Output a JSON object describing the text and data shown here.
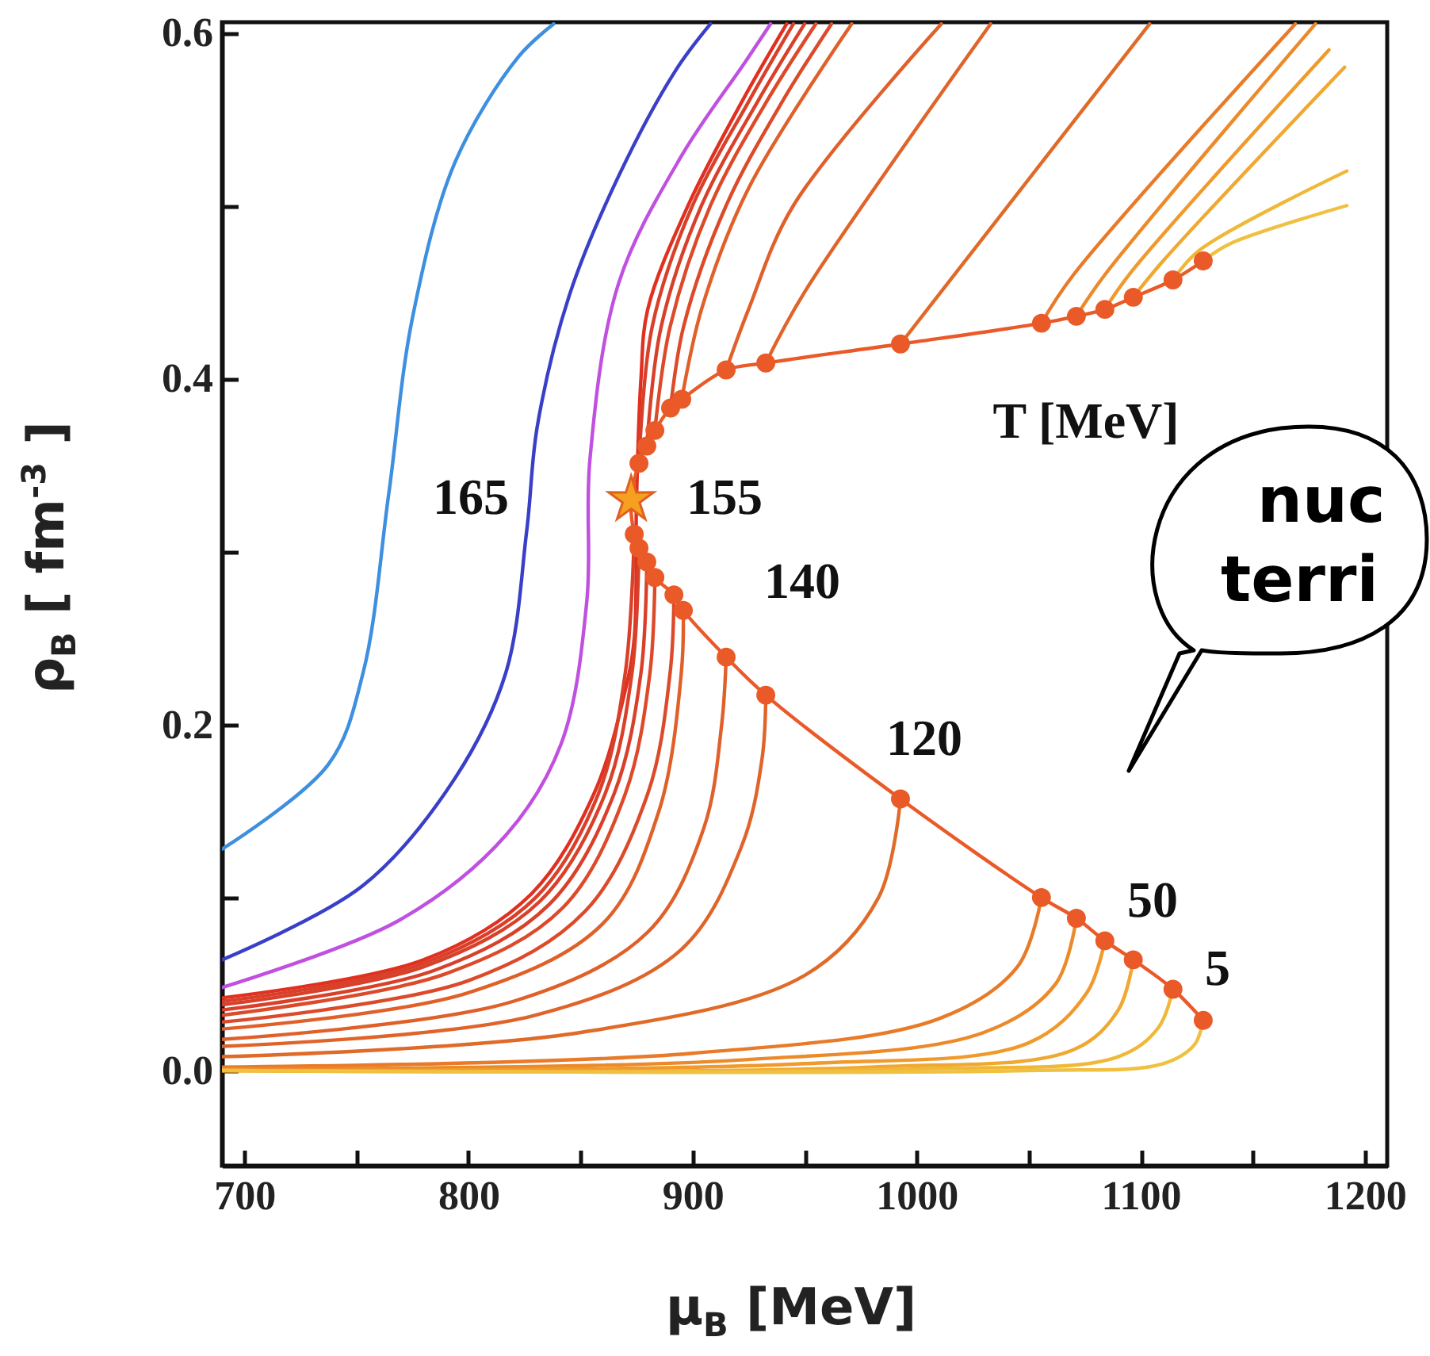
{
  "chart_data": {
    "type": "line",
    "xlabel": "μ$_{B}$ [MeV]",
    "ylabel": "ρ$_{B}$ [ fm$^{-3}$ ]",
    "xlim": [
      690,
      1210
    ],
    "ylim": [
      -0.055,
      0.606
    ],
    "xticks": [
      700,
      {
        "value": 750,
        "label": null
      },
      800,
      {
        "value": 850,
        "label": null
      },
      900,
      {
        "value": 950,
        "label": null
      },
      1000,
      {
        "value": 1050,
        "label": null
      },
      1100,
      {
        "value": 1150,
        "label": null
      },
      1200
    ],
    "yticks": [
      {
        "value": 0,
        "label": "0.0"
      },
      {
        "value": 0.1,
        "label": null
      },
      0.2,
      {
        "value": 0.3,
        "label": null
      },
      0.4,
      {
        "value": 0.5,
        "label": null
      },
      0.6
    ],
    "series": [
      {
        "color": "#3d8fe0",
        "x": [
          690,
          737.5,
          753,
          764.4,
          775,
          794,
          822.3,
          838
        ],
        "values": [
          0.128,
          0.177,
          0.23,
          0.333,
          0.435,
          0.525,
          0.586,
          0.605
        ]
      },
      {
        "type": "line",
        "color": "#3a3fc8",
        "x": [
          690,
          753,
          794,
          816.7,
          826,
          830.8,
          845,
          867,
          892.4,
          908
        ],
        "values": [
          0.064,
          0.107,
          0.169,
          0.23,
          0.312,
          0.373,
          0.448,
          0.517,
          0.578,
          0.605
        ]
      },
      {
        "type": "line",
        "color": "#c050e0",
        "x": [
          690,
          769.3,
          816.7,
          841.4,
          852.8,
          854.2,
          867,
          895.2,
          923.5,
          934.8
        ],
        "values": [
          0.048,
          0.087,
          0.136,
          0.189,
          0.271,
          0.353,
          0.455,
          0.529,
          0.583,
          0.605
        ]
      },
      {
        "type": "line",
        "color": "#e03020",
        "x": [
          690,
          780,
          828,
          856,
          870,
          874,
          875,
          877,
          880,
          898,
          922,
          942
        ],
        "values": [
          0.042,
          0.064,
          0.102,
          0.16,
          0.22,
          0.25,
          0.33,
          0.4,
          0.44,
          0.5,
          0.56,
          0.605
        ]
      },
      {
        "type": "line",
        "color": "#d9402a",
        "x": [
          690,
          780,
          830,
          858,
          870,
          874
        ],
        "values": [
          0.04,
          0.062,
          0.1,
          0.16,
          0.23,
          0.31
        ]
      },
      {
        "type": "line",
        "color": "#d9402a",
        "x": [
          690,
          780,
          832,
          861,
          873,
          876.1
        ],
        "values": [
          0.038,
          0.06,
          0.098,
          0.16,
          0.23,
          0.302
        ]
      },
      {
        "type": "line",
        "color": "#d9402a",
        "x": [
          690,
          785,
          836,
          865,
          877,
          879.6
        ],
        "values": [
          0.035,
          0.058,
          0.096,
          0.16,
          0.23,
          0.294
        ]
      },
      {
        "type": "line",
        "color": "#dc4a2a",
        "x": [
          690,
          790,
          842,
          870,
          881,
          883.2
        ],
        "values": [
          0.032,
          0.056,
          0.094,
          0.16,
          0.23,
          0.285
        ]
      },
      {
        "type": "line",
        "color": "#dc4a2a",
        "x": [
          690,
          800,
          852,
          880,
          890,
          891.7
        ],
        "values": [
          0.028,
          0.052,
          0.092,
          0.16,
          0.23,
          0.275
        ]
      },
      {
        "type": "line",
        "color": "#e0602a",
        "x": [
          690,
          800,
          860,
          885,
          895,
          895.9
        ],
        "values": [
          0.024,
          0.045,
          0.085,
          0.15,
          0.23,
          0.266
        ]
      },
      {
        "type": "line",
        "color": "#e0602a",
        "x": [
          690,
          820,
          880,
          905,
          913,
          915
        ],
        "values": [
          0.018,
          0.04,
          0.08,
          0.14,
          0.2,
          0.239
        ]
      },
      {
        "type": "line",
        "color": "#e0642a",
        "x": [
          690,
          830,
          895,
          922,
          931,
          932.7
        ],
        "values": [
          0.014,
          0.032,
          0.07,
          0.13,
          0.18,
          0.217
        ]
      },
      {
        "type": "line",
        "color": "#e06a28",
        "x": [
          690,
          850,
          950,
          983,
          992.8
        ],
        "values": [
          0.008,
          0.022,
          0.055,
          0.1,
          0.157
        ]
      },
      {
        "type": "line",
        "color": "#e87a28",
        "x": [
          690,
          900,
          1010,
          1045,
          1055.7
        ],
        "values": [
          0.002,
          0.01,
          0.03,
          0.06,
          0.1
        ]
      },
      {
        "type": "line",
        "color": "#ec8a2a",
        "x": [
          690,
          920,
          1030,
          1062,
          1071.3
        ],
        "values": [
          0.001,
          0.006,
          0.022,
          0.05,
          0.088
        ]
      },
      {
        "type": "line",
        "color": "#f09a2c",
        "x": [
          690,
          950,
          1050,
          1076,
          1084
        ],
        "values": [
          0,
          0.004,
          0.016,
          0.045,
          0.075
        ]
      },
      {
        "type": "line",
        "color": "#f0a830",
        "x": [
          690,
          980,
          1070,
          1090,
          1096.7
        ],
        "values": [
          0,
          0.002,
          0.012,
          0.035,
          0.064
        ]
      },
      {
        "type": "line",
        "color": "#f0b838",
        "x": [
          690,
          1000,
          1090,
          1108,
          1114.4
        ],
        "values": [
          0,
          0.001,
          0.008,
          0.025,
          0.047
        ]
      },
      {
        "type": "line",
        "color": "#f0c040",
        "x": [
          690,
          1050,
          1110,
          1124,
          1127.9
        ],
        "values": [
          0,
          0,
          0.004,
          0.015,
          0.029
        ]
      },
      {
        "type": "line",
        "color": "#d9402a",
        "x": [
          876.1,
          882,
          900,
          925,
          945
        ],
        "values": [
          0.351,
          0.43,
          0.5,
          0.56,
          0.605
        ]
      },
      {
        "type": "line",
        "color": "#d9402a",
        "x": [
          879.6,
          886,
          904,
          929,
          950
        ],
        "values": [
          0.361,
          0.43,
          0.5,
          0.56,
          0.605
        ]
      },
      {
        "type": "line",
        "color": "#dc4a2a",
        "x": [
          883.2,
          890,
          908,
          933,
          955
        ],
        "values": [
          0.37,
          0.43,
          0.5,
          0.56,
          0.605
        ]
      },
      {
        "type": "line",
        "color": "#dc4a2a",
        "x": [
          890.2,
          896,
          915,
          940,
          962
        ],
        "values": [
          0.383,
          0.43,
          0.5,
          0.56,
          0.605
        ]
      },
      {
        "type": "line",
        "color": "#e0602a",
        "x": [
          895.2,
          904,
          925,
          971
        ],
        "values": [
          0.388,
          0.44,
          0.51,
          0.605
        ]
      },
      {
        "type": "line",
        "color": "#e0602a",
        "x": [
          915,
          925,
          945,
          1011
        ],
        "values": [
          0.405,
          0.44,
          0.5,
          0.605
        ]
      },
      {
        "type": "line",
        "color": "#e0642a",
        "x": [
          932.7,
          950,
          1033
        ],
        "values": [
          0.409,
          0.45,
          0.605
        ]
      },
      {
        "type": "line",
        "color": "#e06a28",
        "x": [
          992.8,
          1000,
          1104
        ],
        "values": [
          0.42,
          0.432,
          0.605
        ]
      },
      {
        "type": "line",
        "color": "#e87a28",
        "x": [
          1055.7,
          1070,
          1169
        ],
        "values": [
          0.432,
          0.46,
          0.605
        ]
      },
      {
        "type": "line",
        "color": "#ec8a2a",
        "x": [
          1071.3,
          1084,
          1178
        ],
        "values": [
          0.436,
          0.46,
          0.605
        ]
      },
      {
        "type": "line",
        "color": "#f09a2c",
        "x": [
          1084,
          1096,
          1184
        ],
        "values": [
          0.44,
          0.462,
          0.59
        ]
      },
      {
        "type": "line",
        "color": "#f0a830",
        "x": [
          1096.7,
          1110,
          1191
        ],
        "values": [
          0.447,
          0.468,
          0.58
        ]
      },
      {
        "type": "line",
        "color": "#f0b838",
        "x": [
          1114.4,
          1126,
          1192
        ],
        "values": [
          0.457,
          0.474,
          0.52
        ]
      },
      {
        "type": "line",
        "color": "#f0c040",
        "x": [
          1127.9,
          1140,
          1192
        ],
        "values": [
          0.468,
          0.478,
          0.5
        ]
      },
      {
        "type": "line",
        "color": "#ea5a28",
        "marker": "circle",
        "x": [
          1127.9,
          1114.4,
          1096.7,
          1084,
          1071.3,
          1055.7,
          992.8,
          932.7,
          915,
          895.9,
          891.7,
          883.2,
          879.6,
          876.1,
          874,
          872.6,
          876.1,
          879.6,
          883.2,
          890.2,
          895.2,
          915,
          932.7,
          992.8,
          1055.7,
          1071.3,
          1084,
          1096.7,
          1114.4,
          1127.9
        ],
        "values": [
          0.029,
          0.047,
          0.064,
          0.075,
          0.088,
          0.1,
          0.157,
          0.217,
          0.239,
          0.266,
          0.275,
          0.285,
          0.294,
          0.302,
          0.31,
          0.33,
          0.351,
          0.361,
          0.37,
          0.383,
          0.388,
          0.405,
          0.409,
          0.42,
          0.432,
          0.436,
          0.44,
          0.447,
          0.457,
          0.468
        ]
      },
      {
        "type": "scatter",
        "color": "#f5a020",
        "marker": "star",
        "x": [
          872.6
        ],
        "values": [
          0.33
        ]
      }
    ],
    "annotations": [
      "165",
      "155",
      "140",
      "120",
      "50",
      "5",
      "T [MeV]",
      "nuc",
      "terri"
    ]
  }
}
